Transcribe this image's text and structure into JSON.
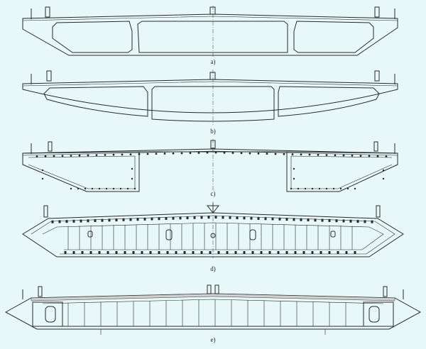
{
  "labels": {
    "a": "a)",
    "b": "b)",
    "c": "c)",
    "d": "d)",
    "e": "e)"
  },
  "colors": {
    "background": "#e8f8f8",
    "line": "#2a2a2a"
  }
}
